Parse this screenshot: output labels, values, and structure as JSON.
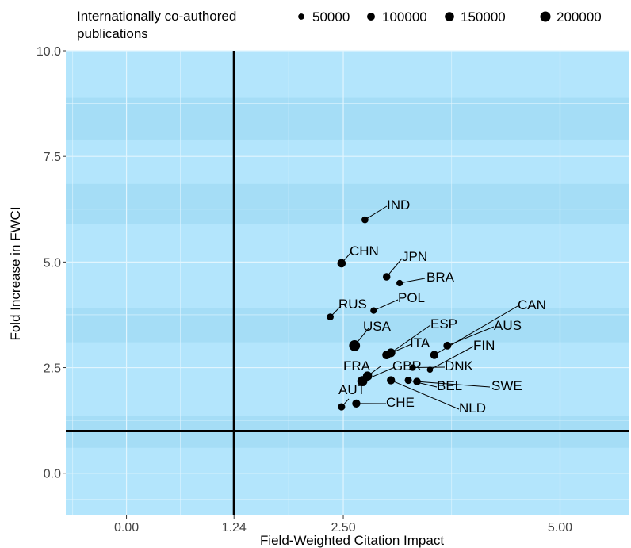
{
  "chart_data": {
    "type": "scatter",
    "title": "",
    "xlabel": "Field-Weighted Citation Impact",
    "ylabel": "Fold Increase in FWCI",
    "xlim": [
      -0.7,
      5.8
    ],
    "ylim": [
      -1.0,
      10.0
    ],
    "x_ticks": [
      {
        "value": 0.0,
        "label": "0.00"
      },
      {
        "value": 1.24,
        "label": "1.24"
      },
      {
        "value": 2.5,
        "label": "2.50"
      },
      {
        "value": 5.0,
        "label": "5.00"
      }
    ],
    "y_ticks": [
      {
        "value": 0.0,
        "label": "0.0"
      },
      {
        "value": 2.5,
        "label": "2.5"
      },
      {
        "value": 5.0,
        "label": "5.0"
      },
      {
        "value": 7.5,
        "label": "7.5"
      },
      {
        "value": 10.0,
        "label": "10.0"
      }
    ],
    "reference_lines": {
      "vertical_x": 1.24,
      "horizontal_y": 1.0
    },
    "grid": true,
    "colors": {
      "panel": "#b3e5fc",
      "panel_band": "#a5ddf6",
      "grid": "#e1f5fe",
      "points": "#000000",
      "reference": "#000000"
    },
    "legend": {
      "title_line1": "Internationally co-authored",
      "title_line2": "publications",
      "position": "top",
      "entries": [
        {
          "label": "50000",
          "size": 50000
        },
        {
          "label": "100000",
          "size": 100000
        },
        {
          "label": "150000",
          "size": 150000
        },
        {
          "label": "200000",
          "size": 200000
        }
      ]
    },
    "points": [
      {
        "label": "IND",
        "x": 2.75,
        "y": 6.0,
        "size": 70000
      },
      {
        "label": "CHN",
        "x": 2.48,
        "y": 4.97,
        "size": 120000
      },
      {
        "label": "JPN",
        "x": 3.0,
        "y": 4.65,
        "size": 90000
      },
      {
        "label": "BRA",
        "x": 3.15,
        "y": 4.5,
        "size": 60000
      },
      {
        "label": "POL",
        "x": 2.85,
        "y": 3.85,
        "size": 60000
      },
      {
        "label": "RUS",
        "x": 2.35,
        "y": 3.7,
        "size": 70000
      },
      {
        "label": "USA",
        "x": 2.63,
        "y": 3.02,
        "size": 230000
      },
      {
        "label": "ESP",
        "x": 3.05,
        "y": 2.85,
        "size": 130000
      },
      {
        "label": "ITA",
        "x": 3.0,
        "y": 2.8,
        "size": 130000
      },
      {
        "label": "CAN",
        "x": 3.55,
        "y": 2.8,
        "size": 110000
      },
      {
        "label": "AUS",
        "x": 3.7,
        "y": 3.02,
        "size": 100000
      },
      {
        "label": "FIN",
        "x": 3.5,
        "y": 2.45,
        "size": 50000
      },
      {
        "label": "DNK",
        "x": 3.3,
        "y": 2.5,
        "size": 60000
      },
      {
        "label": "FRA",
        "x": 2.78,
        "y": 2.3,
        "size": 150000
      },
      {
        "label": "GBR",
        "x": 2.72,
        "y": 2.18,
        "size": 190000
      },
      {
        "label": "BEL",
        "x": 3.25,
        "y": 2.2,
        "size": 80000
      },
      {
        "label": "SWE",
        "x": 3.35,
        "y": 2.17,
        "size": 90000
      },
      {
        "label": "NLD",
        "x": 3.05,
        "y": 2.2,
        "size": 110000
      },
      {
        "label": "AUT",
        "x": 2.48,
        "y": 1.57,
        "size": 80000
      },
      {
        "label": "CHE",
        "x": 2.65,
        "y": 1.65,
        "size": 110000
      }
    ]
  }
}
